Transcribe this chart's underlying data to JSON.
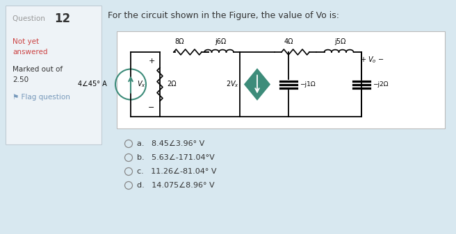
{
  "title": "For the circuit shown in the Figure, the value of Vo is:",
  "bg_color": "#d8e8f0",
  "left_panel_color": "#eef3f7",
  "circuit_bg": "#f5f8fa",
  "white": "#ffffff",
  "teal_color": "#3d8c7a",
  "dark_text": "#333333",
  "red_text": "#cc4444",
  "gray_text": "#888888",
  "blue_text": "#4466aa",
  "source_label": "4−45° A",
  "options": [
    "a.   8.45∠3.96° V",
    "b.   5.63∠-171.04°V",
    "c.   11.26∠-81.04° V",
    "d.   14.075∠8.96° V"
  ]
}
